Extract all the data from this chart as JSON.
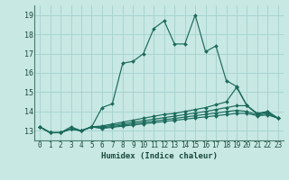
{
  "xlabel": "Humidex (Indice chaleur)",
  "xlim": [
    -0.5,
    23.5
  ],
  "ylim": [
    12.5,
    19.5
  ],
  "bg_color": "#c8e8e4",
  "grid_color": "#a8d4d0",
  "line_color": "#1a6b5a",
  "xticks": [
    0,
    1,
    2,
    3,
    4,
    5,
    6,
    7,
    8,
    9,
    10,
    11,
    12,
    13,
    14,
    15,
    16,
    17,
    18,
    19,
    20,
    21,
    22,
    23
  ],
  "yticks": [
    13,
    14,
    15,
    16,
    17,
    18,
    19
  ],
  "series": [
    [
      13.2,
      12.9,
      12.9,
      13.2,
      13.0,
      13.2,
      14.2,
      14.4,
      16.5,
      16.6,
      17.0,
      18.3,
      18.7,
      17.5,
      17.5,
      19.0,
      17.1,
      17.4,
      15.6,
      15.3,
      14.3,
      13.9,
      14.0,
      13.65
    ],
    [
      13.2,
      12.9,
      12.9,
      13.1,
      13.0,
      13.2,
      13.25,
      13.35,
      13.45,
      13.55,
      13.65,
      13.75,
      13.85,
      13.9,
      14.0,
      14.1,
      14.2,
      14.35,
      14.5,
      15.25,
      14.3,
      13.85,
      14.0,
      13.65
    ],
    [
      13.2,
      12.9,
      12.9,
      13.1,
      13.0,
      13.2,
      13.2,
      13.28,
      13.36,
      13.44,
      13.52,
      13.6,
      13.68,
      13.76,
      13.84,
      13.92,
      14.0,
      14.1,
      14.2,
      14.3,
      14.3,
      13.88,
      13.95,
      13.65
    ],
    [
      13.2,
      12.9,
      12.9,
      13.1,
      13.0,
      13.2,
      13.15,
      13.22,
      13.29,
      13.36,
      13.43,
      13.5,
      13.57,
      13.64,
      13.71,
      13.78,
      13.85,
      13.92,
      13.99,
      14.06,
      14.0,
      13.82,
      13.88,
      13.65
    ],
    [
      13.2,
      12.9,
      12.9,
      13.1,
      13.0,
      13.2,
      13.12,
      13.18,
      13.24,
      13.3,
      13.36,
      13.42,
      13.48,
      13.54,
      13.6,
      13.66,
      13.72,
      13.78,
      13.84,
      13.9,
      13.9,
      13.78,
      13.82,
      13.65
    ]
  ],
  "marker_size": 2.0,
  "linewidth": 0.85
}
